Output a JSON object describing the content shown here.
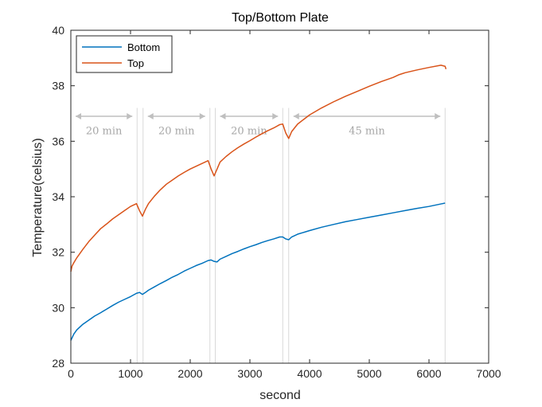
{
  "chart_data": {
    "type": "line",
    "title": "Top/Bottom Plate",
    "xlabel": "second",
    "ylabel": "Temperature(celsius)",
    "xlim": [
      0,
      7000
    ],
    "ylim": [
      28,
      40
    ],
    "xticks": [
      0,
      1000,
      2000,
      3000,
      4000,
      5000,
      6000,
      7000
    ],
    "yticks": [
      28,
      30,
      32,
      34,
      36,
      38,
      40
    ],
    "grid": false,
    "legend_position": "top-left",
    "series": [
      {
        "name": "Bottom",
        "color": "#0072BD",
        "x": [
          0,
          50,
          100,
          200,
          300,
          400,
          500,
          600,
          700,
          800,
          900,
          1000,
          1100,
          1150,
          1200,
          1250,
          1300,
          1400,
          1500,
          1600,
          1700,
          1800,
          1900,
          2000,
          2100,
          2200,
          2300,
          2350,
          2400,
          2450,
          2500,
          2600,
          2700,
          2800,
          2900,
          3000,
          3100,
          3200,
          3300,
          3400,
          3500,
          3550,
          3600,
          3650,
          3700,
          3800,
          4000,
          4200,
          4400,
          4600,
          4800,
          5000,
          5200,
          5400,
          5600,
          5800,
          6000,
          6200,
          6270
        ],
        "y": [
          28.82,
          29.05,
          29.2,
          29.4,
          29.55,
          29.7,
          29.82,
          29.95,
          30.08,
          30.2,
          30.3,
          30.4,
          30.52,
          30.55,
          30.48,
          30.55,
          30.63,
          30.75,
          30.87,
          30.98,
          31.1,
          31.2,
          31.32,
          31.42,
          31.52,
          31.6,
          31.7,
          31.72,
          31.67,
          31.65,
          31.75,
          31.85,
          31.95,
          32.03,
          32.12,
          32.2,
          32.27,
          32.35,
          32.42,
          32.48,
          32.55,
          32.55,
          32.48,
          32.45,
          32.55,
          32.65,
          32.78,
          32.9,
          33.0,
          33.1,
          33.18,
          33.26,
          33.34,
          33.42,
          33.5,
          33.58,
          33.65,
          33.74,
          33.77
        ]
      },
      {
        "name": "Top",
        "color": "#D95319",
        "x": [
          0,
          20,
          50,
          100,
          200,
          300,
          400,
          500,
          600,
          700,
          800,
          900,
          1000,
          1100,
          1150,
          1200,
          1250,
          1300,
          1400,
          1500,
          1600,
          1700,
          1800,
          1900,
          2000,
          2100,
          2200,
          2300,
          2350,
          2400,
          2450,
          2500,
          2600,
          2700,
          2800,
          2900,
          3000,
          3100,
          3200,
          3300,
          3400,
          3500,
          3550,
          3600,
          3650,
          3700,
          3800,
          4000,
          4200,
          4400,
          4600,
          4800,
          5000,
          5200,
          5400,
          5500,
          5600,
          5800,
          6000,
          6200,
          6270,
          6285
        ],
        "y": [
          31.3,
          31.5,
          31.62,
          31.8,
          32.1,
          32.38,
          32.62,
          32.85,
          33.02,
          33.2,
          33.35,
          33.5,
          33.65,
          33.75,
          33.5,
          33.3,
          33.55,
          33.75,
          34.02,
          34.25,
          34.45,
          34.6,
          34.75,
          34.88,
          35.0,
          35.1,
          35.2,
          35.3,
          35.0,
          34.75,
          35.0,
          35.25,
          35.45,
          35.62,
          35.77,
          35.9,
          36.02,
          36.15,
          36.27,
          36.38,
          36.48,
          36.6,
          36.62,
          36.3,
          36.1,
          36.35,
          36.62,
          36.95,
          37.2,
          37.42,
          37.62,
          37.8,
          37.98,
          38.15,
          38.3,
          38.4,
          38.47,
          38.57,
          38.66,
          38.74,
          38.7,
          38.6
        ]
      }
    ],
    "reference_lines_x": [
      1110,
      1210,
      2330,
      2420,
      3550,
      3650,
      6270
    ],
    "annotations": [
      {
        "text": "20 min",
        "x_start": 0,
        "x_end": 1110,
        "y": 36.9,
        "label_y": 36.4
      },
      {
        "text": "20 min",
        "x_start": 1210,
        "x_end": 2330,
        "y": 36.9,
        "label_y": 36.4
      },
      {
        "text": "20 min",
        "x_start": 2420,
        "x_end": 3550,
        "y": 36.9,
        "label_y": 36.4
      },
      {
        "text": "45 min",
        "x_start": 3650,
        "x_end": 6270,
        "y": 36.9,
        "label_y": 36.4
      }
    ]
  },
  "colors": {
    "axis": "#262626",
    "reference_line": "#d9d9d9",
    "annotation": "#bfbfbf",
    "annotation_text": "#a6a6a6"
  }
}
